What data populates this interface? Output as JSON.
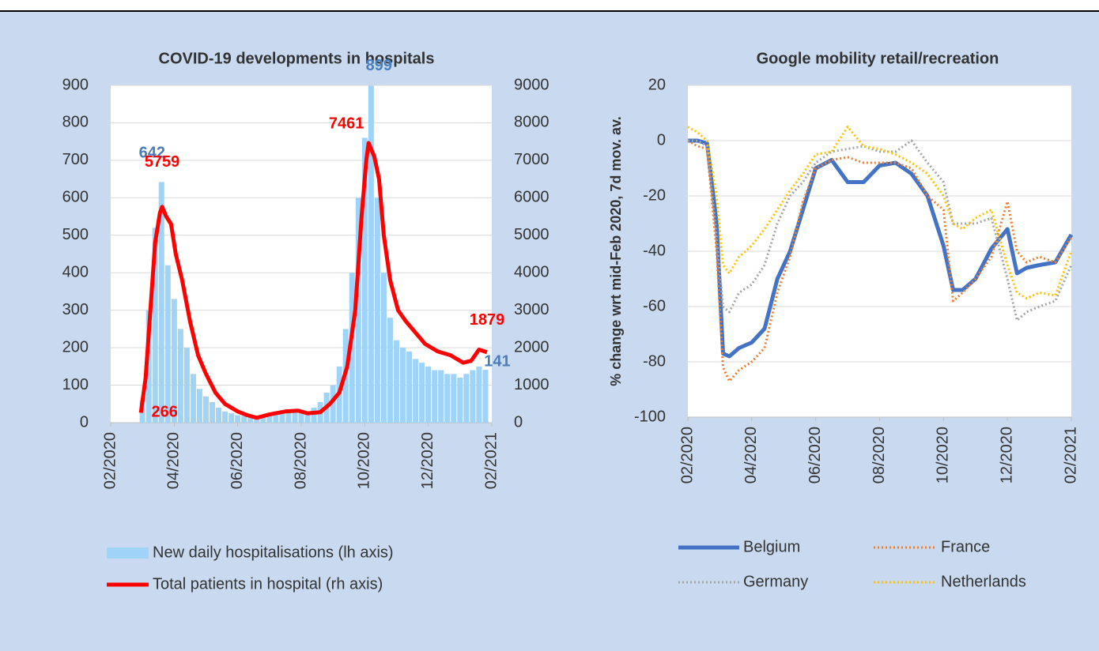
{
  "chart_data": [
    {
      "type": "combo",
      "title": "COVID-19 developments in hospitals",
      "xlim": [
        0,
        12
      ],
      "xticks": [
        {
          "value": 0,
          "label": "02/2020"
        },
        {
          "value": 2,
          "label": "04/2020"
        },
        {
          "value": 4,
          "label": "06/2020"
        },
        {
          "value": 6,
          "label": "08/2020"
        },
        {
          "value": 8,
          "label": "10/2020"
        },
        {
          "value": 10,
          "label": "12/2020"
        },
        {
          "value": 12,
          "label": "02/2021"
        }
      ],
      "ylim": [
        0,
        900
      ],
      "yticks": [
        0,
        100,
        200,
        300,
        400,
        500,
        600,
        700,
        800,
        900
      ],
      "y2lim": [
        0,
        9000
      ],
      "y2ticks": [
        0,
        1000,
        2000,
        3000,
        4000,
        5000,
        6000,
        7000,
        8000,
        9000
      ],
      "grid": true,
      "series": [
        {
          "name": "New daily hospitalisations (lh axis)",
          "type": "bar",
          "color": "#9fd3f7",
          "x": [
            1.0,
            1.2,
            1.4,
            1.6,
            1.8,
            2.0,
            2.2,
            2.4,
            2.6,
            2.8,
            3.0,
            3.2,
            3.4,
            3.6,
            3.8,
            4.0,
            4.2,
            4.4,
            4.6,
            4.8,
            5.0,
            5.2,
            5.4,
            5.6,
            5.8,
            6.0,
            6.2,
            6.4,
            6.6,
            6.8,
            7.0,
            7.2,
            7.4,
            7.6,
            7.8,
            8.0,
            8.2,
            8.4,
            8.6,
            8.8,
            9.0,
            9.2,
            9.4,
            9.6,
            9.8,
            10.0,
            10.2,
            10.4,
            10.6,
            10.8,
            11.0,
            11.2,
            11.4,
            11.6,
            11.8
          ],
          "values": [
            60,
            300,
            520,
            642,
            420,
            330,
            250,
            200,
            130,
            90,
            70,
            55,
            40,
            30,
            25,
            20,
            18,
            15,
            15,
            20,
            25,
            30,
            30,
            30,
            28,
            25,
            30,
            40,
            55,
            80,
            100,
            150,
            250,
            400,
            600,
            760,
            899,
            600,
            400,
            280,
            220,
            200,
            190,
            170,
            160,
            150,
            140,
            140,
            130,
            130,
            120,
            130,
            140,
            150,
            141
          ]
        },
        {
          "name": "Total patients in hospital (rh axis)",
          "type": "line",
          "axis": "y2",
          "color": "#ff0000",
          "x": [
            0.95,
            1.1,
            1.25,
            1.4,
            1.55,
            1.62,
            1.75,
            1.9,
            2.05,
            2.25,
            2.5,
            2.75,
            3.0,
            3.3,
            3.6,
            4.0,
            4.3,
            4.6,
            5.0,
            5.5,
            5.9,
            6.2,
            6.6,
            6.9,
            7.2,
            7.45,
            7.7,
            7.9,
            8.05,
            8.12,
            8.3,
            8.45,
            8.6,
            8.8,
            9.05,
            9.3,
            9.6,
            9.9,
            10.3,
            10.7,
            11.1,
            11.35,
            11.6,
            11.85
          ],
          "values": [
            266,
            1200,
            3000,
            4800,
            5600,
            5759,
            5500,
            5300,
            4500,
            3800,
            2700,
            1800,
            1300,
            800,
            500,
            300,
            200,
            130,
            220,
            300,
            320,
            250,
            280,
            500,
            800,
            1500,
            3000,
            5500,
            7000,
            7461,
            7100,
            6500,
            5000,
            3800,
            3000,
            2700,
            2400,
            2100,
            1900,
            1800,
            1600,
            1650,
            1950,
            1879
          ]
        }
      ]
    },
    {
      "type": "line",
      "title": "Google mobility retail/recreation",
      "y_label": "% change wrt mid-Feb 2020, 7d mov. av.",
      "xlim": [
        0,
        12
      ],
      "xticks": [
        {
          "value": 0,
          "label": "02/2020"
        },
        {
          "value": 2,
          "label": "04/2020"
        },
        {
          "value": 4,
          "label": "06/2020"
        },
        {
          "value": 6,
          "label": "08/2020"
        },
        {
          "value": 8,
          "label": "10/2020"
        },
        {
          "value": 10,
          "label": "12/2020"
        },
        {
          "value": 12,
          "label": "02/2021"
        }
      ],
      "ylim": [
        -100,
        20
      ],
      "yticks": [
        -100,
        -80,
        -60,
        -40,
        -20,
        0,
        20
      ],
      "grid": true,
      "x": [
        0,
        0.3,
        0.6,
        0.9,
        1.1,
        1.3,
        1.6,
        2.0,
        2.4,
        2.8,
        3.2,
        3.6,
        4.0,
        4.5,
        5.0,
        5.5,
        6.0,
        6.5,
        7.0,
        7.5,
        8.0,
        8.3,
        8.6,
        9.0,
        9.5,
        10.0,
        10.3,
        10.6,
        11.0,
        11.5,
        12.0
      ],
      "series": [
        {
          "name": "Belgium",
          "color": "#4472c4",
          "style": "solid",
          "values": [
            0,
            0,
            -1,
            -30,
            -77,
            -78,
            -75,
            -73,
            -68,
            -50,
            -40,
            -25,
            -10,
            -7,
            -15,
            -15,
            -9,
            -8,
            -12,
            -20,
            -38,
            -54,
            -54,
            -50,
            -39,
            -32,
            -48,
            -46,
            -45,
            -44,
            -34
          ]
        },
        {
          "name": "France",
          "color": "#ed7d31",
          "style": "dotted",
          "values": [
            0,
            -2,
            -3,
            -40,
            -82,
            -87,
            -83,
            -80,
            -75,
            -55,
            -42,
            -22,
            -10,
            -7,
            -6,
            -8,
            -8,
            -8,
            -10,
            -20,
            -25,
            -58,
            -55,
            -50,
            -42,
            -22,
            -40,
            -44,
            -42,
            -44,
            -35
          ]
        },
        {
          "name": "Germany",
          "color": "#a5a5a5",
          "style": "dotted",
          "values": [
            0,
            0,
            -2,
            -35,
            -60,
            -62,
            -55,
            -52,
            -45,
            -30,
            -20,
            -15,
            -8,
            -4,
            -3,
            -2,
            -4,
            -4,
            0,
            -8,
            -15,
            -30,
            -30,
            -30,
            -28,
            -50,
            -65,
            -62,
            -60,
            -58,
            -45
          ]
        },
        {
          "name": "Netherlands",
          "color": "#ffc000",
          "style": "dotted",
          "values": [
            5,
            3,
            0,
            -20,
            -45,
            -48,
            -42,
            -38,
            -32,
            -25,
            -18,
            -12,
            -5,
            -4,
            5,
            -2,
            -3,
            -5,
            -8,
            -12,
            -20,
            -30,
            -32,
            -28,
            -25,
            -45,
            -55,
            -57,
            -55,
            -56,
            -40
          ]
        }
      ]
    }
  ]
}
